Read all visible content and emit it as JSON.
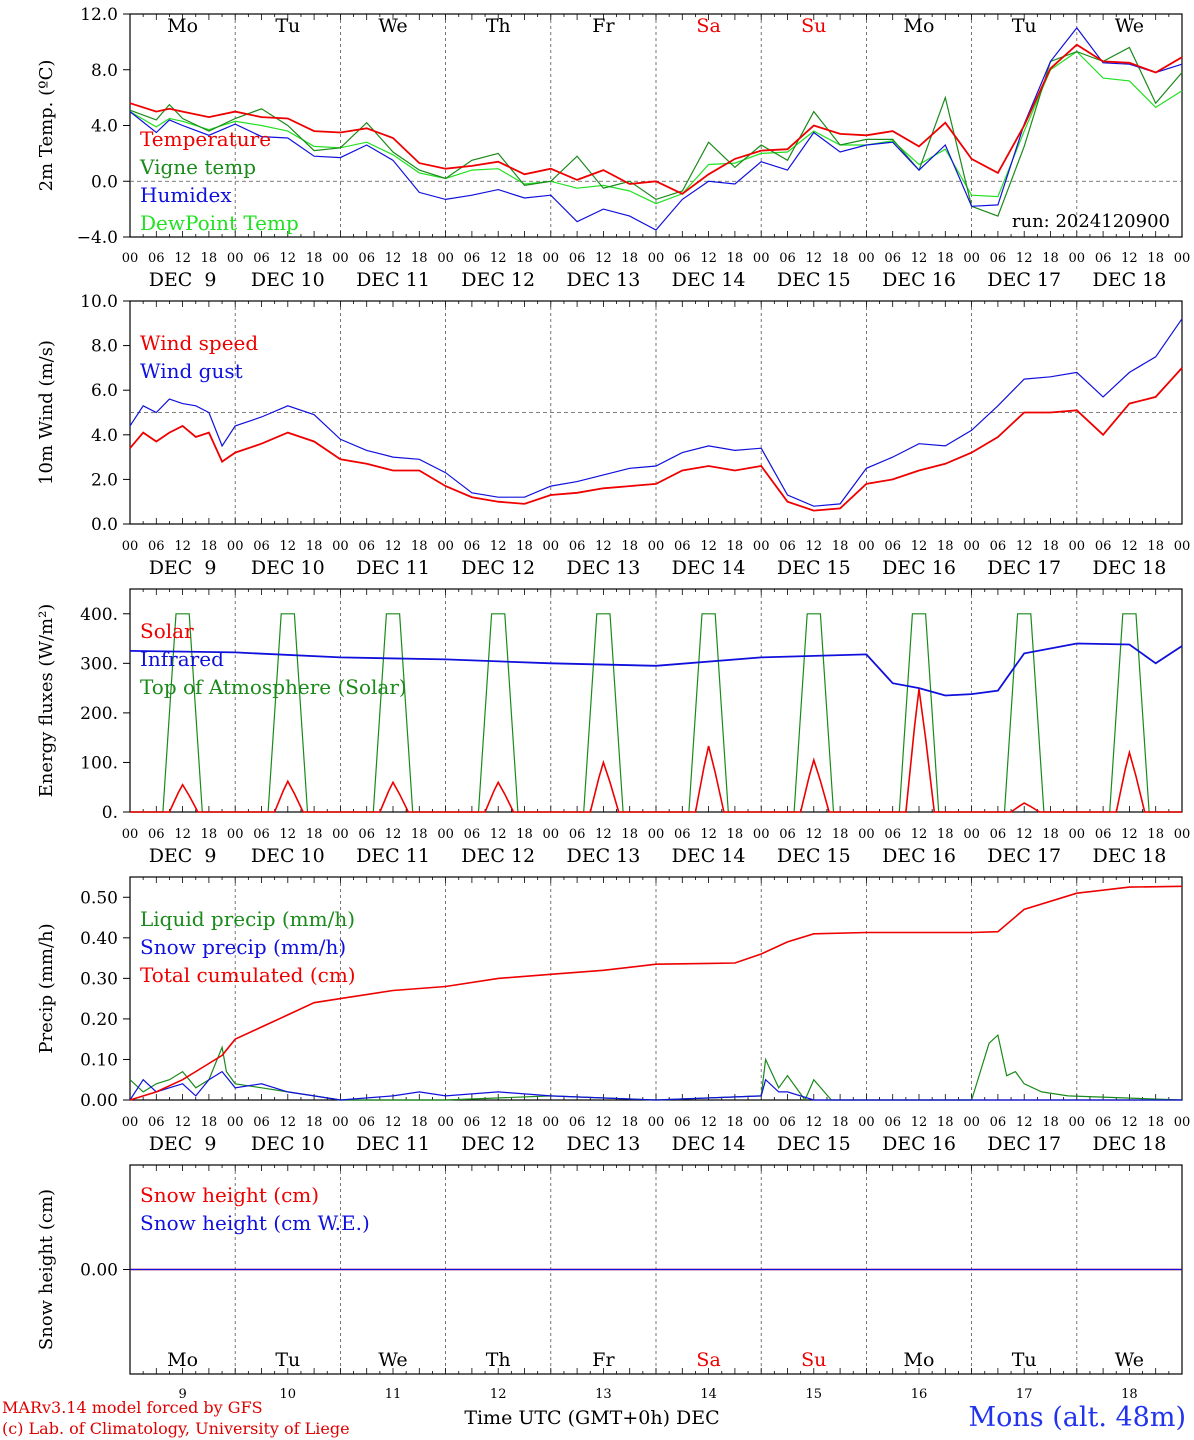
{
  "colors": {
    "red": "#ee0000",
    "green": "#1a8a1a",
    "blue": "#1010dd",
    "lightgreen": "#22e022",
    "weekend": "#ee0000"
  },
  "chart_data": {
    "type": "line",
    "run": "run: 2024120900",
    "tick_hours": [
      "00",
      "06",
      "12",
      "18"
    ],
    "final_tick": "00",
    "dates": [
      "DEC  9",
      "DEC 10",
      "DEC 11",
      "DEC 12",
      "DEC 13",
      "DEC 14",
      "DEC 15",
      "DEC 16",
      "DEC 17",
      "DEC 18"
    ],
    "days": [
      {
        "label": "Mo",
        "weekend": false
      },
      {
        "label": "Tu",
        "weekend": false
      },
      {
        "label": "We",
        "weekend": false
      },
      {
        "label": "Th",
        "weekend": false
      },
      {
        "label": "Fr",
        "weekend": false
      },
      {
        "label": "Sa",
        "weekend": true
      },
      {
        "label": "Su",
        "weekend": true
      },
      {
        "label": "Mo",
        "weekend": false
      },
      {
        "label": "Tu",
        "weekend": false
      },
      {
        "label": "We",
        "weekend": false
      }
    ],
    "day_numbers": [
      "9",
      "10",
      "11",
      "12",
      "13",
      "14",
      "15",
      "16",
      "17",
      "18"
    ],
    "x_title": "Time UTC (GMT+0h) DEC",
    "panels": [
      {
        "id": "temp",
        "ylabel": "2m Temp. (ºC)",
        "ylim": [
          -4,
          12
        ],
        "yticks": [
          "12.0",
          "8.0",
          "4.0",
          "0.0",
          "−4.0"
        ],
        "ytick_values": [
          12,
          8,
          4,
          0,
          -4
        ],
        "ref_line": 0,
        "x_hours": [
          0,
          6,
          9,
          12,
          18,
          24,
          30,
          36,
          42,
          48,
          54,
          60,
          66,
          72,
          78,
          84,
          90,
          96,
          102,
          108,
          114,
          120,
          126,
          132,
          138,
          144,
          150,
          156,
          162,
          168,
          174,
          180,
          186,
          192,
          198,
          204,
          210,
          216,
          222,
          228,
          234,
          240
        ],
        "series": [
          {
            "name": "Temperature",
            "color": "red",
            "values": [
              5.6,
              5.0,
              5.2,
              5.0,
              4.6,
              5.0,
              4.6,
              4.5,
              3.6,
              3.5,
              3.8,
              3.1,
              1.3,
              0.9,
              1.1,
              1.4,
              0.5,
              0.9,
              0.1,
              0.8,
              -0.2,
              0.0,
              -0.9,
              0.5,
              1.6,
              2.2,
              2.3,
              4.0,
              3.4,
              3.3,
              3.6,
              2.5,
              4.2,
              1.6,
              0.6,
              4.0,
              8.1,
              9.8,
              8.6,
              8.5,
              7.8,
              8.9
            ]
          },
          {
            "name": "Vigne temp",
            "color": "green",
            "values": [
              5.1,
              4.4,
              5.5,
              4.5,
              3.6,
              4.5,
              5.2,
              4.0,
              2.2,
              2.4,
              4.2,
              2.1,
              0.8,
              0.2,
              1.5,
              2.0,
              -0.3,
              0.0,
              1.8,
              -0.5,
              0.0,
              -1.3,
              -0.7,
              2.8,
              1.0,
              2.6,
              1.5,
              5.0,
              2.6,
              3.0,
              3.0,
              0.8,
              6.0,
              -1.8,
              -2.5,
              2.5,
              8.6,
              9.3,
              8.6,
              9.6,
              5.6,
              7.8
            ]
          },
          {
            "name": "Humidex",
            "color": "blue",
            "values": [
              5.0,
              3.5,
              4.4,
              4.0,
              3.3,
              4.1,
              3.2,
              3.1,
              1.8,
              1.7,
              2.6,
              1.5,
              -0.8,
              -1.3,
              -1.0,
              -0.6,
              -1.2,
              -1.0,
              -2.9,
              -2.0,
              -2.5,
              -3.5,
              -1.3,
              0.0,
              -0.2,
              1.4,
              0.8,
              3.5,
              2.1,
              2.6,
              2.8,
              0.8,
              2.6,
              -1.8,
              -1.7,
              4.1,
              8.6,
              11.0,
              8.5,
              8.4,
              7.8,
              8.4
            ]
          },
          {
            "name": "DewPoint Temp",
            "color": "lightgreen",
            "values": [
              5.0,
              3.9,
              4.5,
              4.3,
              3.7,
              4.3,
              4.0,
              3.6,
              2.5,
              2.4,
              2.8,
              1.9,
              0.6,
              0.2,
              0.8,
              0.9,
              -0.2,
              0.0,
              -0.5,
              -0.3,
              -0.7,
              -1.6,
              -0.9,
              1.2,
              1.3,
              2.0,
              2.1,
              3.6,
              2.6,
              2.6,
              2.9,
              1.2,
              2.3,
              -1.0,
              -1.1,
              3.6,
              8.0,
              9.3,
              7.4,
              7.2,
              5.3,
              6.5
            ]
          }
        ]
      },
      {
        "id": "wind",
        "ylabel": "10m Wind (m/s)",
        "ylim": [
          0,
          10
        ],
        "yticks": [
          "10.0",
          "8.0",
          "6.0",
          "4.0",
          "2.0",
          "0.0"
        ],
        "ytick_values": [
          10,
          8,
          6,
          4,
          2,
          0
        ],
        "ref_line": 5,
        "x_hours": [
          0,
          3,
          6,
          9,
          12,
          15,
          18,
          21,
          24,
          30,
          36,
          42,
          48,
          54,
          60,
          66,
          72,
          78,
          84,
          90,
          96,
          102,
          108,
          114,
          120,
          126,
          132,
          138,
          144,
          150,
          156,
          162,
          168,
          174,
          180,
          186,
          192,
          198,
          204,
          210,
          216,
          222,
          228,
          234,
          240
        ],
        "series": [
          {
            "name": "Wind speed",
            "color": "red",
            "values": [
              3.4,
              4.1,
              3.7,
              4.1,
              4.4,
              3.9,
              4.1,
              2.8,
              3.2,
              3.6,
              4.1,
              3.7,
              2.9,
              2.7,
              2.4,
              2.4,
              1.7,
              1.2,
              1.0,
              0.9,
              1.3,
              1.4,
              1.6,
              1.7,
              1.8,
              2.4,
              2.6,
              2.4,
              2.6,
              1.0,
              0.6,
              0.7,
              1.8,
              2.0,
              2.4,
              2.7,
              3.2,
              3.9,
              5.0,
              5.0,
              5.1,
              4.0,
              5.4,
              5.7,
              7.0
            ]
          },
          {
            "name": "Wind gust",
            "color": "blue",
            "values": [
              4.4,
              5.3,
              5.0,
              5.6,
              5.4,
              5.3,
              5.0,
              3.5,
              4.4,
              4.8,
              5.3,
              4.9,
              3.8,
              3.3,
              3.0,
              2.9,
              2.3,
              1.4,
              1.2,
              1.2,
              1.7,
              1.9,
              2.2,
              2.5,
              2.6,
              3.2,
              3.5,
              3.3,
              3.4,
              1.3,
              0.8,
              0.9,
              2.5,
              3.0,
              3.6,
              3.5,
              4.2,
              5.3,
              6.5,
              6.6,
              6.8,
              5.7,
              6.8,
              7.5,
              9.2
            ]
          }
        ]
      },
      {
        "id": "energy",
        "ylabel": "Energy fluxes (W/m²)",
        "ylim": [
          0,
          450
        ],
        "yticks": [
          "400.",
          "300.",
          "200.",
          "100.",
          "0."
        ],
        "ytick_values": [
          400,
          300,
          200,
          100,
          0
        ],
        "ref_line": null,
        "solar_peaks": [
          55,
          62,
          60,
          60,
          100,
          133,
          105,
          248,
          18,
          120
        ],
        "toa_peak": 400,
        "infrared": {
          "x_hours": [
            0,
            24,
            48,
            72,
            96,
            120,
            144,
            168,
            174,
            180,
            186,
            192,
            198,
            204,
            216,
            228,
            234,
            240
          ],
          "values": [
            325,
            322,
            312,
            308,
            300,
            295,
            312,
            318,
            260,
            250,
            235,
            238,
            245,
            320,
            340,
            338,
            300,
            335
          ]
        },
        "series": [
          {
            "name": "Solar",
            "color": "red"
          },
          {
            "name": "Infrared",
            "color": "blue"
          },
          {
            "name": "Top of Atmosphere (Solar)",
            "color": "green"
          }
        ]
      },
      {
        "id": "precip",
        "ylabel": "Precip (mm/h)",
        "ylim": [
          0,
          0.55
        ],
        "yticks": [
          "0.50",
          "0.40",
          "0.30",
          "0.20",
          "0.10",
          "0.00"
        ],
        "ytick_values": [
          0.5,
          0.4,
          0.3,
          0.2,
          0.1,
          0.0
        ],
        "ref_line": null,
        "series": [
          {
            "name": "Liquid precip (mm/h)",
            "color": "green",
            "x_hours": [
              0,
              3,
              6,
              9,
              12,
              15,
              18,
              21,
              22,
              24,
              30,
              36,
              42,
              48,
              72,
              96,
              120,
              144,
              145,
              148,
              150,
              154,
              156,
              160,
              168,
              192,
              196,
              198,
              200,
              202,
              204,
              208,
              214,
              240
            ],
            "values": [
              0.05,
              0.02,
              0.04,
              0.05,
              0.07,
              0.03,
              0.05,
              0.13,
              0.07,
              0.04,
              0.03,
              0.02,
              0.01,
              0.0,
              0.0,
              0.01,
              0.0,
              0.01,
              0.1,
              0.03,
              0.06,
              0.0,
              0.05,
              0.0,
              0.0,
              0.0,
              0.14,
              0.16,
              0.06,
              0.07,
              0.04,
              0.02,
              0.01,
              0.0
            ]
          },
          {
            "name": "Snow precip (mm/h)",
            "color": "blue",
            "x_hours": [
              0,
              3,
              6,
              9,
              12,
              15,
              18,
              21,
              24,
              30,
              36,
              42,
              48,
              60,
              66,
              72,
              84,
              96,
              120,
              144,
              145,
              148,
              150,
              156,
              240
            ],
            "values": [
              0.0,
              0.05,
              0.02,
              0.03,
              0.04,
              0.01,
              0.05,
              0.07,
              0.03,
              0.04,
              0.02,
              0.01,
              0.0,
              0.01,
              0.02,
              0.01,
              0.02,
              0.01,
              0.0,
              0.01,
              0.05,
              0.02,
              0.02,
              0.0,
              0.0
            ]
          },
          {
            "name": "Total cumulated (cm)",
            "color": "red",
            "x_hours": [
              0,
              6,
              12,
              18,
              21,
              24,
              30,
              36,
              42,
              48,
              60,
              72,
              84,
              96,
              108,
              120,
              132,
              138,
              144,
              150,
              156,
              168,
              180,
              192,
              198,
              204,
              216,
              228,
              240
            ],
            "values": [
              0.0,
              0.02,
              0.05,
              0.09,
              0.11,
              0.15,
              0.18,
              0.21,
              0.24,
              0.25,
              0.27,
              0.28,
              0.3,
              0.31,
              0.32,
              0.335,
              0.337,
              0.338,
              0.36,
              0.39,
              0.41,
              0.413,
              0.413,
              0.413,
              0.415,
              0.47,
              0.51,
              0.525,
              0.527
            ]
          }
        ]
      },
      {
        "id": "snow",
        "ylabel": "Snow height (cm)",
        "ylim": [
          -1,
          1
        ],
        "yticks": [
          "0.00"
        ],
        "ytick_values": [
          0
        ],
        "ref_line": null,
        "series": [
          {
            "name": "Snow height (cm)",
            "color": "red",
            "x_hours": [
              0,
              240
            ],
            "values": [
              0,
              0
            ]
          },
          {
            "name": "Snow height (cm W.E.)",
            "color": "blue",
            "x_hours": [
              0,
              240
            ],
            "values": [
              0,
              0
            ]
          }
        ]
      }
    ]
  },
  "footer": {
    "credit_line1": "MARv3.14 model forced by GFS",
    "credit_line2": "(c) Lab. of Climatology, University of Liege",
    "station": "Mons (alt. 48m)"
  }
}
